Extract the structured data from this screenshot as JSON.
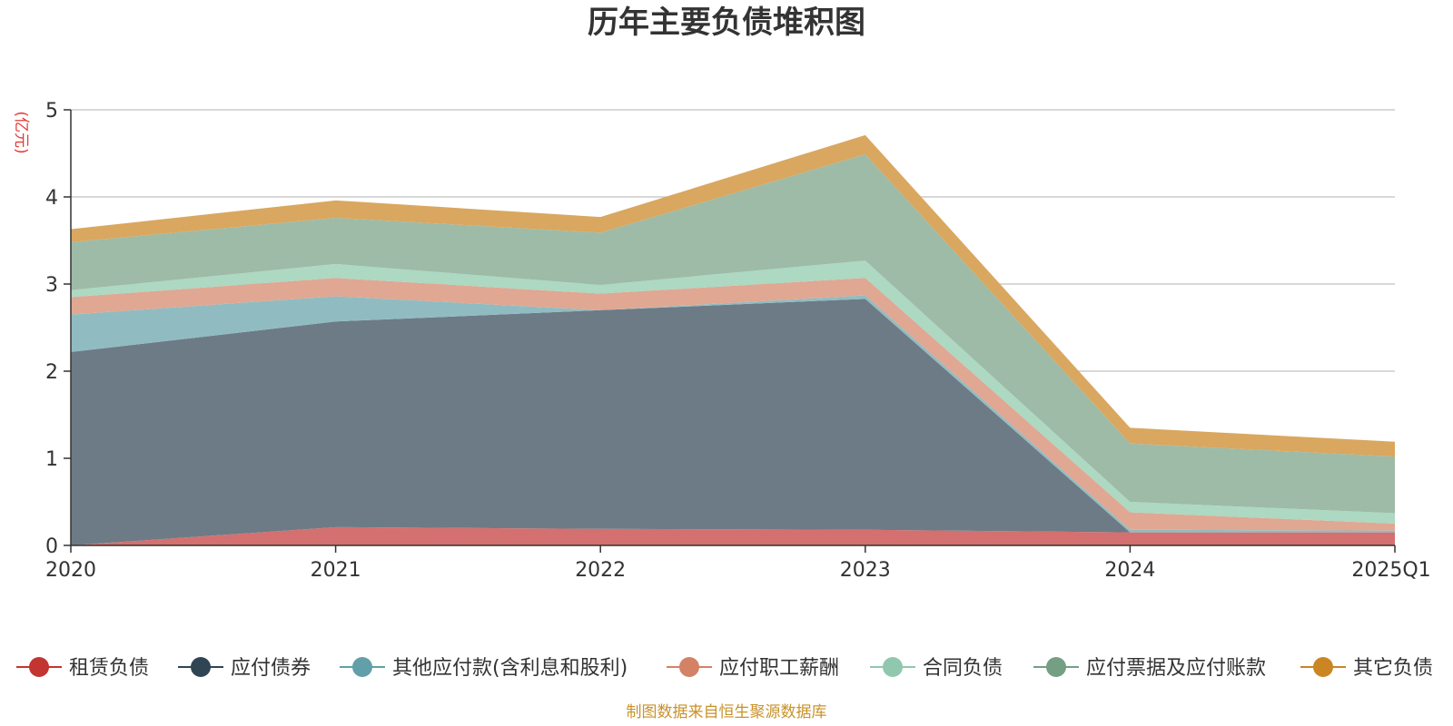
{
  "chart_data": {
    "type": "area",
    "title": "历年主要负债堆积图",
    "unit_label": "(亿元)",
    "categories": [
      "2020",
      "2021",
      "2022",
      "2023",
      "2024",
      "2025Q1"
    ],
    "ylim": [
      0,
      5
    ],
    "yticks": [
      0,
      1,
      2,
      3,
      4,
      5
    ],
    "stacked": true,
    "series": [
      {
        "name": "租赁负债",
        "color": "#c23531",
        "fill": "#d4706f",
        "values": [
          0.0,
          0.21,
          0.19,
          0.18,
          0.15,
          0.15
        ]
      },
      {
        "name": "应付债券",
        "color": "#2f4554",
        "fill": "#6d7b86",
        "values": [
          2.22,
          2.36,
          2.51,
          2.65,
          0.0,
          0.0
        ]
      },
      {
        "name": "其他应付款(含利息和股利)",
        "color": "#61a0a8",
        "fill": "#90bcc1",
        "values": [
          0.43,
          0.29,
          0.0,
          0.04,
          0.03,
          0.02
        ]
      },
      {
        "name": "应付职工薪酬",
        "color": "#d48265",
        "fill": "#e0a793",
        "values": [
          0.2,
          0.21,
          0.19,
          0.2,
          0.2,
          0.08
        ]
      },
      {
        "name": "合同负债",
        "color": "#91c7ae",
        "fill": "#add8c2",
        "values": [
          0.08,
          0.16,
          0.1,
          0.2,
          0.12,
          0.12
        ]
      },
      {
        "name": "应付票据及应付账款",
        "color": "#749f83",
        "fill": "#9ebba7",
        "values": [
          0.55,
          0.53,
          0.6,
          1.22,
          0.67,
          0.65
        ]
      },
      {
        "name": "其它负债",
        "color": "#ca8622",
        "fill": "#d9a75f",
        "values": [
          0.15,
          0.2,
          0.18,
          0.22,
          0.18,
          0.17
        ]
      }
    ],
    "legend_position": "bottom",
    "gridlines": true
  },
  "footer": {
    "source_text": "制图数据来自恒生聚源数据库",
    "source_color": "#c8922a",
    "unit_color": "#e53935"
  }
}
